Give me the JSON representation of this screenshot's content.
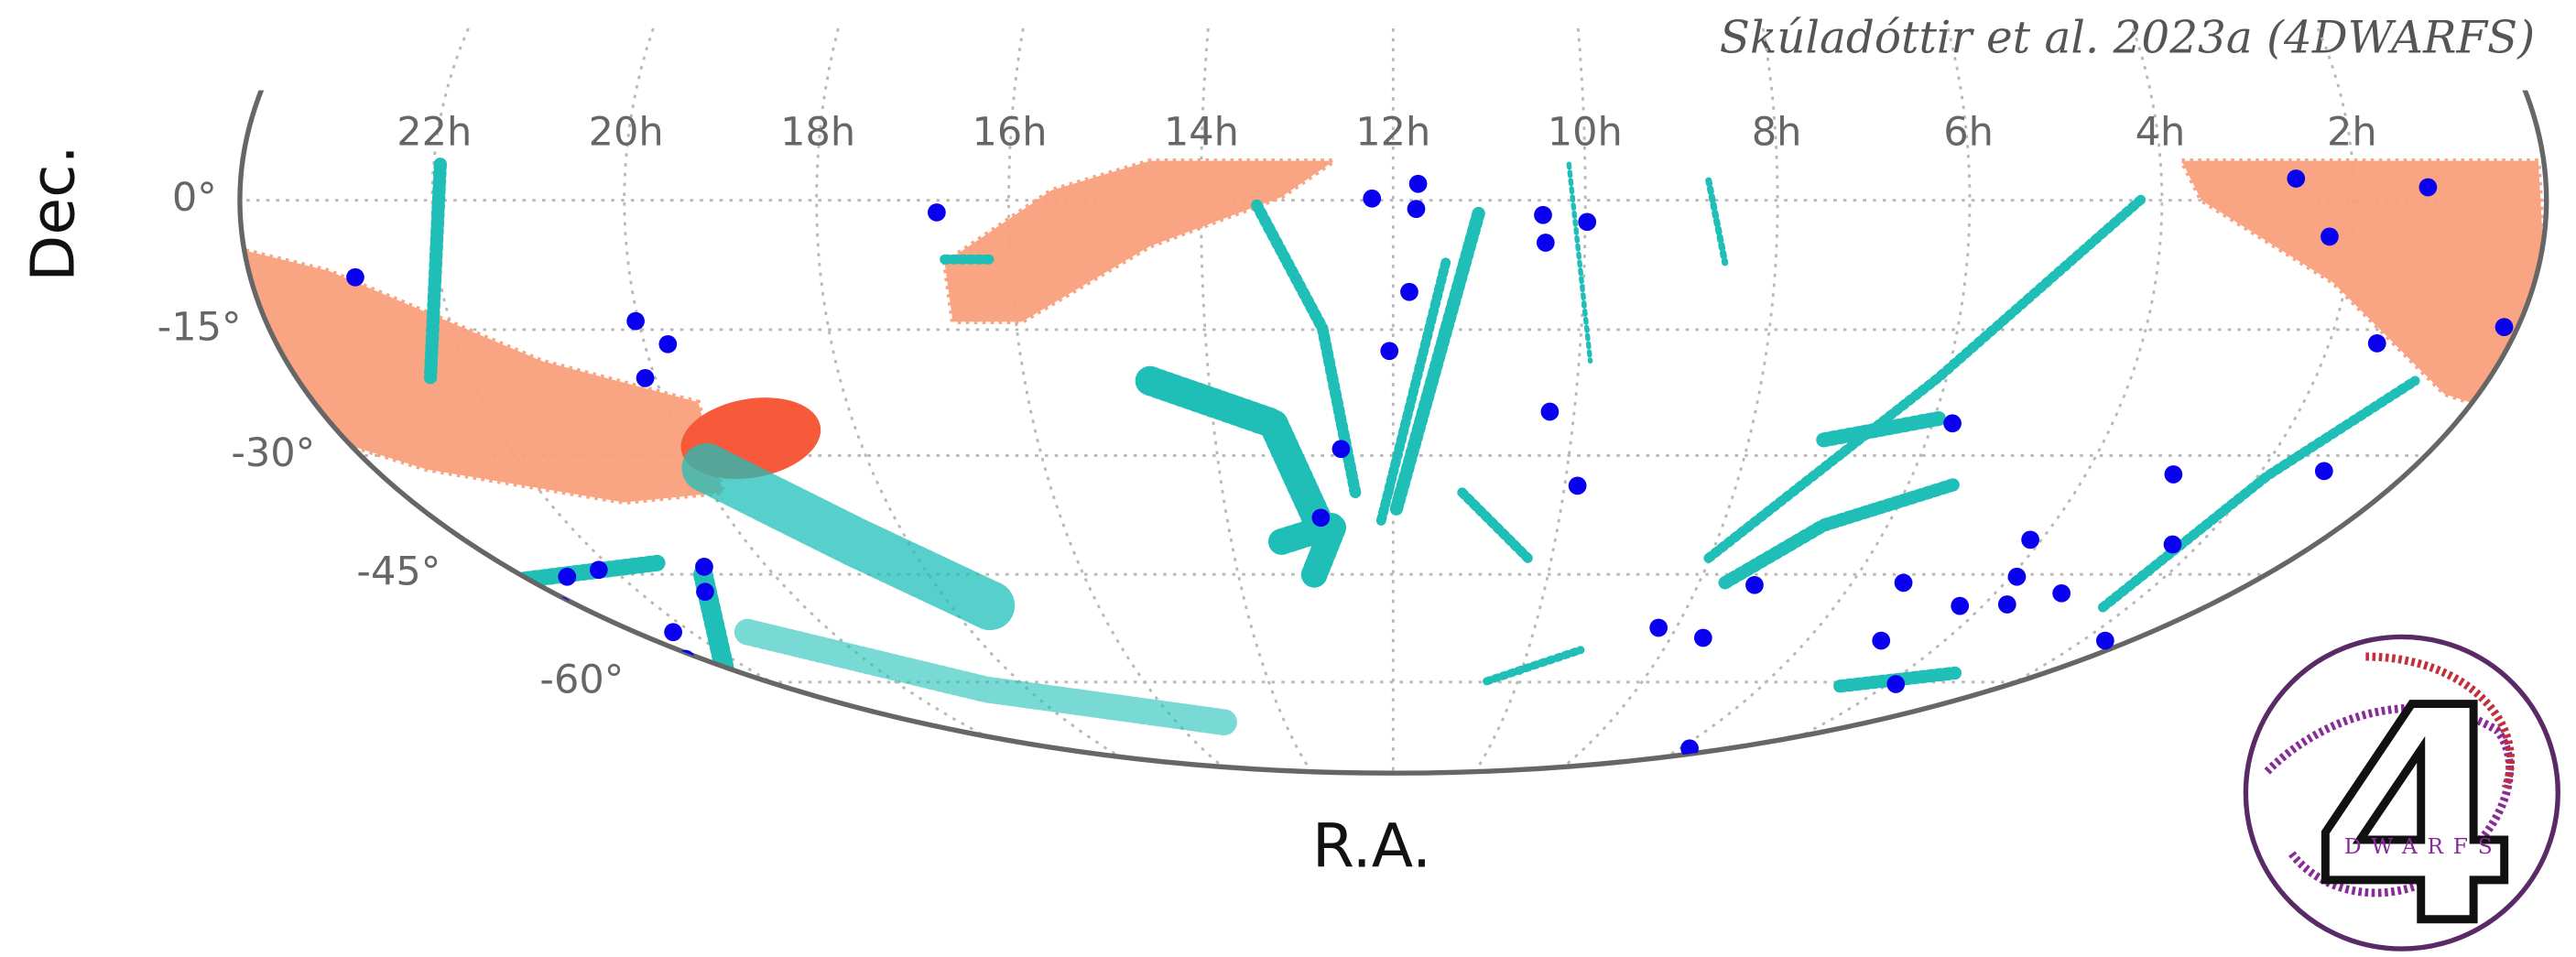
{
  "chart_data": {
    "type": "scatter",
    "projection": "mollweide",
    "annotation": "Skúladóttir et al. 2023a (4DWARFS)",
    "xlabel": "R.A.",
    "ylabel": "Dec.",
    "x": [
      16.75,
      22.88,
      20.03,
      19.75,
      20.11,
      22.19,
      22.7,
      23.28,
      20.8,
      21.12,
      23.19,
      22.26,
      22.7,
      12.22,
      11.74,
      11.76,
      10.44,
      10.41,
      11.83,
      12.04,
      10.27,
      12.59,
      9.85,
      12.87,
      9.98,
      7.26,
      8.25,
      7.53,
      5.8,
      5.78,
      5.33,
      4.92,
      3.87,
      4.31,
      3.69,
      3.92,
      4.14,
      3.12,
      2.33,
      2.99,
      1.28,
      1.67,
      2.6,
      1.23,
      2.24,
      1.49,
      0.2
    ],
    "values": [
      -1.4,
      -8.9,
      -14,
      -16.7,
      -20.7,
      -44.4,
      -45.3,
      -49.2,
      -44,
      -47.3,
      -53.6,
      -52.8,
      -56.6,
      0.2,
      1.9,
      -1,
      -1.7,
      -4.9,
      -10.6,
      -17.5,
      -24.7,
      -29.2,
      -33.7,
      -37.7,
      -2.5,
      -46.4,
      -52.2,
      -53.6,
      -70.6,
      -26.1,
      -46.1,
      -54,
      -60.3,
      -49.2,
      -49,
      -45.3,
      -40.5,
      -47.5,
      -41.1,
      -32.3,
      -31.9,
      -54,
      2.5,
      1.5,
      -4.2,
      -16.6,
      -14.7
    ],
    "color": "#0a00f0",
    "xlim": [
      24,
      0
    ],
    "ylim": [
      -75,
      5
    ],
    "xticks": [
      {
        "value": 22,
        "label": "22h"
      },
      {
        "value": 20,
        "label": "20h"
      },
      {
        "value": 18,
        "label": "18h"
      },
      {
        "value": 16,
        "label": "16h"
      },
      {
        "value": 14,
        "label": "14h"
      },
      {
        "value": 12,
        "label": "12h"
      },
      {
        "value": 10,
        "label": "10h"
      },
      {
        "value": 8,
        "label": "8h"
      },
      {
        "value": 6,
        "label": "6h"
      },
      {
        "value": 4,
        "label": "4h"
      },
      {
        "value": 2,
        "label": "2h"
      }
    ],
    "yticks": [
      {
        "value": 0,
        "label": "0°"
      },
      {
        "value": -15,
        "label": "-15°"
      },
      {
        "value": -30,
        "label": "-30°"
      },
      {
        "value": -45,
        "label": "-45°"
      },
      {
        "value": -60,
        "label": "-60°"
      }
    ],
    "grid": true
  },
  "logo": {
    "numeral": "4",
    "text": "DWARFS"
  }
}
